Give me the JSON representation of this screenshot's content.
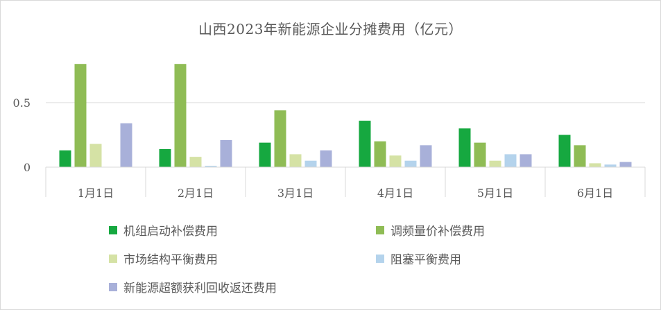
{
  "chart_data": {
    "type": "bar",
    "title": "山西2023年新能源企业分摊费用（亿元）",
    "categories": [
      "1月1日",
      "2月1日",
      "3月1日",
      "4月1日",
      "5月1日",
      "6月1日"
    ],
    "series": [
      {
        "name": "机组启动补偿费用",
        "color": "#16a840",
        "values": [
          0.13,
          0.14,
          0.19,
          0.36,
          0.3,
          0.25
        ]
      },
      {
        "name": "调频量价补偿费用",
        "color": "#8fbc55",
        "values": [
          0.8,
          0.8,
          0.44,
          0.2,
          0.19,
          0.17
        ]
      },
      {
        "name": "市场结构平衡费用",
        "color": "#d5e2a5",
        "values": [
          0.18,
          0.08,
          0.1,
          0.09,
          0.05,
          0.03
        ]
      },
      {
        "name": "阻塞平衡费用",
        "color": "#b4d3ec",
        "values": [
          0.0,
          0.01,
          0.05,
          0.05,
          0.1,
          0.02
        ]
      },
      {
        "name": "新能源超额获利回收返还费用",
        "color": "#a8b0d9",
        "values": [
          0.34,
          0.21,
          0.13,
          0.17,
          0.1,
          0.04
        ]
      }
    ],
    "y_ticks": [
      "0",
      "0.5"
    ],
    "ylim": [
      0,
      0.87
    ],
    "grid": true,
    "legend_position": "bottom"
  }
}
